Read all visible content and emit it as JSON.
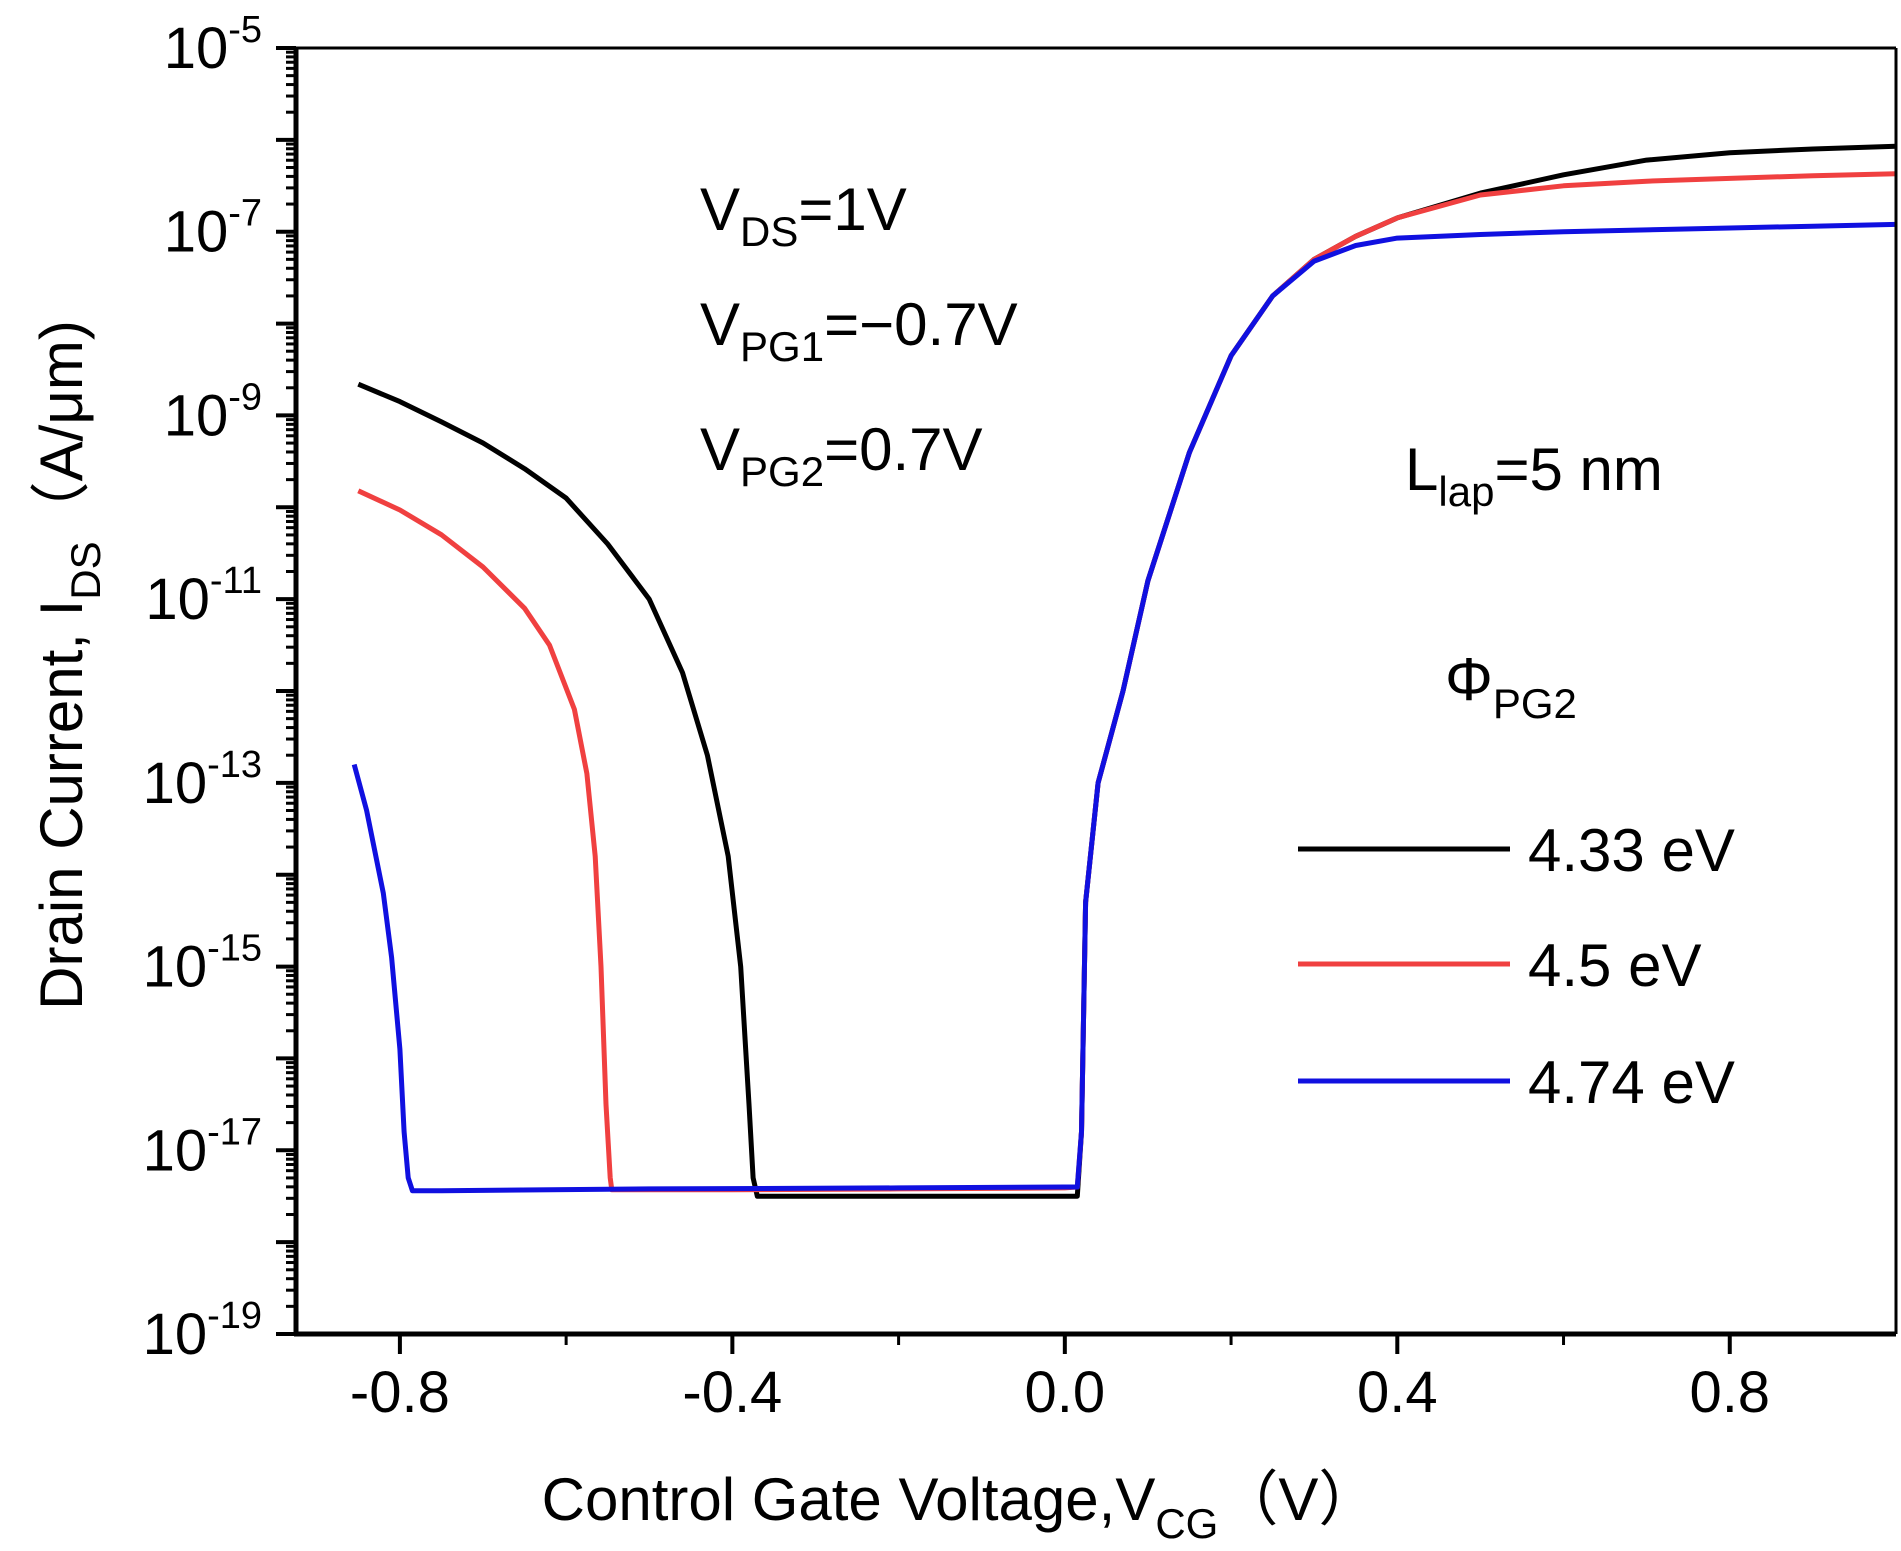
{
  "chart_data": {
    "type": "line",
    "yscale": "log",
    "xlabel": {
      "main": "Control Gate Voltage,V",
      "sub": "CG",
      "unit": "（V）"
    },
    "ylabel": {
      "main": "Drain Current, I",
      "sub": "DS",
      "unit": "（A/μm)"
    },
    "xlim": [
      -0.925,
      1.0
    ],
    "ylim_exp": [
      -19,
      -5
    ],
    "x_ticks": [
      -0.8,
      -0.4,
      0.0,
      0.4,
      0.8
    ],
    "x_tick_labels": [
      "-0.8",
      "-0.4",
      "0.0",
      "0.4",
      "0.8"
    ],
    "x_minor_ticks": [
      -0.6,
      -0.2,
      0.2,
      0.6
    ],
    "y_tick_exps": [
      -19,
      -17,
      -15,
      -13,
      -11,
      -9,
      -7,
      -5
    ],
    "y_tick_labels": [
      {
        "base": "10",
        "exp": "-19"
      },
      {
        "base": "10",
        "exp": "-17"
      },
      {
        "base": "10",
        "exp": "-15"
      },
      {
        "base": "10",
        "exp": "-13"
      },
      {
        "base": "10",
        "exp": "-11"
      },
      {
        "base": "10",
        "exp": "-9"
      },
      {
        "base": "10",
        "exp": "-7"
      },
      {
        "base": "10",
        "exp": "-5"
      }
    ],
    "annotations": {
      "vds": {
        "main": "V",
        "sub": "DS",
        "rest": "=1V"
      },
      "vpg1": {
        "main": "V",
        "sub": "PG1",
        "rest": "=−0.7V"
      },
      "vpg2": {
        "main": "V",
        "sub": "PG2",
        "rest": "=0.7V"
      },
      "llap": {
        "main": "L",
        "sub": "lap",
        "rest": "=5 nm"
      }
    },
    "legend": {
      "title_main": "Φ",
      "title_sub": "PG2",
      "position": "right"
    },
    "series": [
      {
        "name": "4.33 eV",
        "color": "#000000",
        "points": [
          [
            -0.85,
            -8.66
          ],
          [
            -0.8,
            -8.85
          ],
          [
            -0.75,
            -9.07
          ],
          [
            -0.7,
            -9.3
          ],
          [
            -0.65,
            -9.58
          ],
          [
            -0.6,
            -9.9
          ],
          [
            -0.55,
            -10.4
          ],
          [
            -0.5,
            -11.0
          ],
          [
            -0.46,
            -11.8
          ],
          [
            -0.43,
            -12.7
          ],
          [
            -0.405,
            -13.8
          ],
          [
            -0.39,
            -15.0
          ],
          [
            -0.38,
            -16.5
          ],
          [
            -0.375,
            -17.3
          ],
          [
            -0.37,
            -17.5
          ],
          [
            -0.2,
            -17.5
          ],
          [
            0.0,
            -17.5
          ],
          [
            0.015,
            -17.5
          ],
          [
            0.02,
            -16.8
          ],
          [
            0.025,
            -14.3
          ],
          [
            0.04,
            -13.0
          ],
          [
            0.07,
            -12.0
          ],
          [
            0.1,
            -10.8
          ],
          [
            0.15,
            -9.4
          ],
          [
            0.2,
            -8.35
          ],
          [
            0.25,
            -7.7
          ],
          [
            0.3,
            -7.3
          ],
          [
            0.35,
            -7.05
          ],
          [
            0.4,
            -6.85
          ],
          [
            0.5,
            -6.58
          ],
          [
            0.6,
            -6.38
          ],
          [
            0.7,
            -6.22
          ],
          [
            0.8,
            -6.14
          ],
          [
            0.9,
            -6.1
          ],
          [
            1.0,
            -6.07
          ]
        ]
      },
      {
        "name": "4.5 eV",
        "color": "#f04040",
        "points": [
          [
            -0.85,
            -9.82
          ],
          [
            -0.8,
            -10.03
          ],
          [
            -0.75,
            -10.3
          ],
          [
            -0.7,
            -10.65
          ],
          [
            -0.65,
            -11.1
          ],
          [
            -0.62,
            -11.5
          ],
          [
            -0.59,
            -12.2
          ],
          [
            -0.575,
            -12.9
          ],
          [
            -0.565,
            -13.8
          ],
          [
            -0.558,
            -15.0
          ],
          [
            -0.552,
            -16.5
          ],
          [
            -0.547,
            -17.3
          ],
          [
            -0.545,
            -17.43
          ],
          [
            -0.4,
            -17.43
          ],
          [
            -0.2,
            -17.42
          ],
          [
            0.0,
            -17.41
          ],
          [
            0.015,
            -17.4
          ],
          [
            0.02,
            -16.8
          ],
          [
            0.025,
            -14.3
          ],
          [
            0.04,
            -13.0
          ],
          [
            0.07,
            -12.0
          ],
          [
            0.1,
            -10.8
          ],
          [
            0.15,
            -9.4
          ],
          [
            0.2,
            -8.35
          ],
          [
            0.25,
            -7.7
          ],
          [
            0.3,
            -7.3
          ],
          [
            0.35,
            -7.05
          ],
          [
            0.4,
            -6.85
          ],
          [
            0.5,
            -6.6
          ],
          [
            0.6,
            -6.5
          ],
          [
            0.7,
            -6.45
          ],
          [
            0.8,
            -6.42
          ],
          [
            0.9,
            -6.39
          ],
          [
            1.0,
            -6.37
          ]
        ]
      },
      {
        "name": "4.74 eV",
        "color": "#1010e0",
        "points": [
          [
            -0.855,
            -12.8
          ],
          [
            -0.84,
            -13.3
          ],
          [
            -0.82,
            -14.2
          ],
          [
            -0.81,
            -14.9
          ],
          [
            -0.8,
            -15.9
          ],
          [
            -0.795,
            -16.8
          ],
          [
            -0.79,
            -17.3
          ],
          [
            -0.785,
            -17.44
          ],
          [
            -0.75,
            -17.44
          ],
          [
            -0.5,
            -17.42
          ],
          [
            -0.2,
            -17.41
          ],
          [
            0.0,
            -17.4
          ],
          [
            0.015,
            -17.4
          ],
          [
            0.02,
            -16.8
          ],
          [
            0.025,
            -14.3
          ],
          [
            0.04,
            -13.0
          ],
          [
            0.07,
            -12.0
          ],
          [
            0.1,
            -10.8
          ],
          [
            0.15,
            -9.4
          ],
          [
            0.2,
            -8.35
          ],
          [
            0.25,
            -7.7
          ],
          [
            0.3,
            -7.32
          ],
          [
            0.35,
            -7.15
          ],
          [
            0.4,
            -7.07
          ],
          [
            0.5,
            -7.03
          ],
          [
            0.6,
            -7.0
          ],
          [
            0.7,
            -6.98
          ],
          [
            0.8,
            -6.96
          ],
          [
            0.9,
            -6.94
          ],
          [
            1.0,
            -6.92
          ]
        ]
      }
    ]
  }
}
